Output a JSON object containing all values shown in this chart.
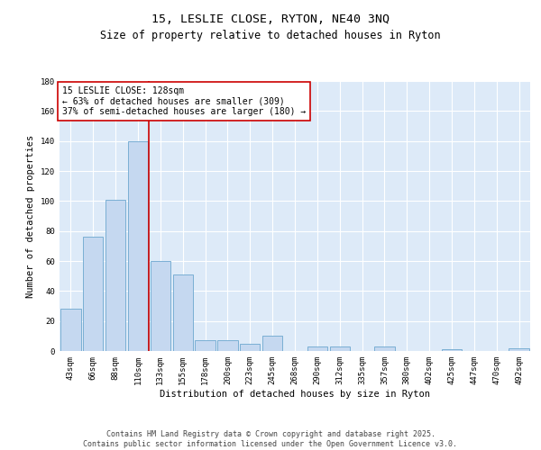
{
  "title_line1": "15, LESLIE CLOSE, RYTON, NE40 3NQ",
  "title_line2": "Size of property relative to detached houses in Ryton",
  "xlabel": "Distribution of detached houses by size in Ryton",
  "ylabel": "Number of detached properties",
  "categories": [
    "43sqm",
    "66sqm",
    "88sqm",
    "110sqm",
    "133sqm",
    "155sqm",
    "178sqm",
    "200sqm",
    "223sqm",
    "245sqm",
    "268sqm",
    "290sqm",
    "312sqm",
    "335sqm",
    "357sqm",
    "380sqm",
    "402sqm",
    "425sqm",
    "447sqm",
    "470sqm",
    "492sqm"
  ],
  "values": [
    28,
    76,
    101,
    140,
    60,
    51,
    7,
    7,
    5,
    10,
    0,
    3,
    3,
    0,
    3,
    0,
    0,
    1,
    0,
    0,
    2
  ],
  "bar_color": "#c5d8f0",
  "bar_edge_color": "#7aafd4",
  "bg_color": "#ddeaf8",
  "grid_color": "#ffffff",
  "red_line_x": 3.5,
  "annotation_text": "15 LESLIE CLOSE: 128sqm\n← 63% of detached houses are smaller (309)\n37% of semi-detached houses are larger (180) →",
  "annotation_box_color": "#ffffff",
  "annotation_box_edge": "#cc0000",
  "red_line_color": "#cc0000",
  "ylim": [
    0,
    180
  ],
  "yticks": [
    0,
    20,
    40,
    60,
    80,
    100,
    120,
    140,
    160,
    180
  ],
  "footer_line1": "Contains HM Land Registry data © Crown copyright and database right 2025.",
  "footer_line2": "Contains public sector information licensed under the Open Government Licence v3.0.",
  "title_fontsize": 9.5,
  "subtitle_fontsize": 8.5,
  "axis_label_fontsize": 7.5,
  "tick_fontsize": 6.5,
  "annotation_fontsize": 7,
  "footer_fontsize": 6
}
